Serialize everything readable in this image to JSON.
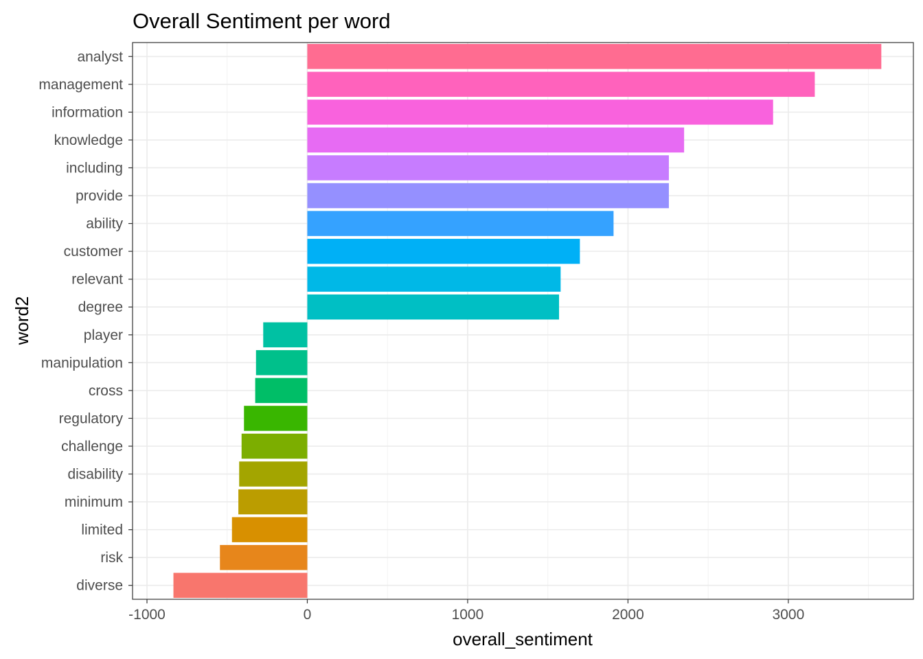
{
  "chart_data": {
    "type": "bar",
    "orientation": "horizontal",
    "title": "Overall Sentiment per word",
    "xlabel": "overall_sentiment",
    "ylabel": "word2",
    "xlim": [
      -1000,
      3800
    ],
    "x_ticks": [
      "-1000",
      "0",
      "1000",
      "2000",
      "3000"
    ],
    "grid": true,
    "legend": "none",
    "categories": [
      "analyst",
      "management",
      "information",
      "knowledge",
      "including",
      "provide",
      "ability",
      "customer",
      "relevant",
      "degree",
      "player",
      "manipulation",
      "cross",
      "regulatory",
      "challenge",
      "disability",
      "minimum",
      "limited",
      "risk",
      "diverse"
    ],
    "values": [
      3580,
      3165,
      2905,
      2350,
      2255,
      2255,
      1910,
      1700,
      1580,
      1570,
      -275,
      -320,
      -325,
      -395,
      -410,
      -425,
      -430,
      -470,
      -545,
      -835
    ],
    "colors": [
      "#FF6C91",
      "#FF62BC",
      "#F962DD",
      "#E76BF3",
      "#C77CFF",
      "#9590FF",
      "#35A2FF",
      "#00B0F6",
      "#00B8E7",
      "#00BFC4",
      "#00C1A3",
      "#00C08B",
      "#00BE67",
      "#39B600",
      "#7CAE00",
      "#A3A500",
      "#BB9D00",
      "#D89000",
      "#E7861B",
      "#F8766D"
    ]
  }
}
